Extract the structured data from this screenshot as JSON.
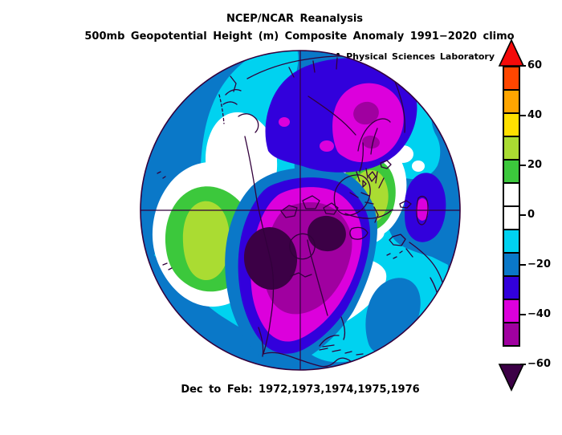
{
  "figure": {
    "title": "NCEP/NCAR Reanalysis",
    "subtitle": "500mb Geopotential Height (m) Composite Anomaly 1991−2020 climo",
    "attribution": "NOAA Physical Sciences Laboratory",
    "caption": "Dec to Feb: 1972,1973,1974,1975,1976"
  },
  "colorbar": {
    "units": "m",
    "tick_labels": [
      "60",
      "40",
      "20",
      "0",
      "−20",
      "−40",
      "−60"
    ],
    "arrow_top_color": "#F50A0A",
    "arrow_bottom_color": "#3C0046",
    "cells": [
      {
        "range": "50 to 60",
        "color": "#FF4600"
      },
      {
        "range": "40 to 50",
        "color": "#FFA500"
      },
      {
        "range": "30 to 40",
        "color": "#FFE000"
      },
      {
        "range": "20 to 30",
        "color": "#AADC32"
      },
      {
        "range": "10 to 20",
        "color": "#3CC83C"
      },
      {
        "range": "0 to 10",
        "color": "#FFFFFF"
      },
      {
        "range": "-10 to 0",
        "color": "#FFFFFF"
      },
      {
        "range": "-20 to -10",
        "color": "#00D2F0"
      },
      {
        "range": "-30 to -20",
        "color": "#0A78C8"
      },
      {
        "range": "-40 to -30",
        "color": "#3200DC"
      },
      {
        "range": "-50 to -40",
        "color": "#DC00DC"
      },
      {
        "range": "-60 to -50",
        "color": "#A000A0"
      }
    ]
  },
  "chart_data": {
    "type": "heatmap",
    "title": "NCEP/NCAR Reanalysis",
    "subtitle": "500mb Geopotential Height (m) Composite Anomaly 1991−2020 climo",
    "source": "NOAA Physical Sciences Laboratory",
    "variable": "500mb Geopotential Height Composite Anomaly",
    "units": "m",
    "season": "Dec to Feb",
    "years": [
      1972,
      1973,
      1974,
      1975,
      1976
    ],
    "climatology": "1991−2020",
    "projection": "Northern Hemisphere polar stereographic",
    "contour_levels": [
      -60,
      -50,
      -40,
      -30,
      -20,
      -10,
      0,
      10,
      20,
      30,
      40,
      50,
      60
    ],
    "palette": {
      "above_60": "#F50A0A",
      "50_60": "#FF4600",
      "40_50": "#FFA500",
      "30_40": "#FFE000",
      "20_30": "#AADC32",
      "10_20": "#3CC83C",
      "neg10_10": "#FFFFFF",
      "neg20_neg10": "#00D2F0",
      "neg30_neg20": "#0A78C8",
      "neg40_neg30": "#3200DC",
      "neg50_neg40": "#DC00DC",
      "neg60_neg50": "#A000A0",
      "below_neg60": "#3C0046",
      "coastline": "#32003C"
    },
    "anomaly_centers": [
      {
        "region": "Western Canada",
        "value_m": "below -60"
      },
      {
        "region": "Eastern Canada / Labrador",
        "value_m": "below -60"
      },
      {
        "region": "Hudson Bay / central Canada",
        "value_m": "-50 to -60"
      },
      {
        "region": "Scandinavia / Barents Sea",
        "value_m": "-50 to -60"
      },
      {
        "region": "Caspian Sea region",
        "value_m": "-40 to -50"
      },
      {
        "region": "North Pacific",
        "value_m": "+20 to +30"
      },
      {
        "region": "Central Europe",
        "value_m": "+20 to +30"
      },
      {
        "region": "Western Atlantic off southeast United States",
        "value_m": "+10 to +20"
      },
      {
        "region": "Mid-latitude oceans generally",
        "value_m": "-10 to -30"
      }
    ]
  }
}
